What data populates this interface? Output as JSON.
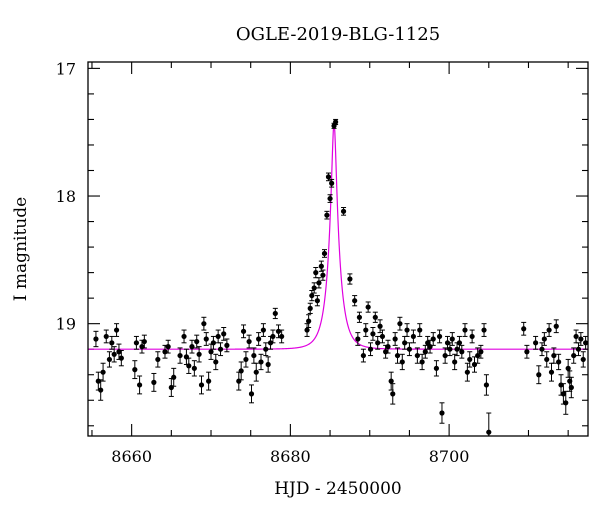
{
  "chart_data": {
    "type": "scatter",
    "title": "OGLE-2019-BLG-1125",
    "xlabel": "HJD - 2450000",
    "ylabel": "I magnitude",
    "xlim": [
      8654.5,
      8717.5
    ],
    "ylim": [
      19.88,
      16.95
    ],
    "y_inverted": true,
    "x_ticks": [
      8660,
      8680,
      8700
    ],
    "y_ticks": [
      17,
      18,
      19
    ],
    "grid": false,
    "colors": {
      "points": "#000000",
      "model": "#e000e0"
    },
    "model": {
      "name": "",
      "baseline": 19.2,
      "peak": 17.43,
      "t0": 8685.5,
      "tE": 1.35
    },
    "series": [
      {
        "points": [
          [
            8655.5,
            19.12,
            0.06
          ],
          [
            8655.8,
            19.45,
            0.07
          ],
          [
            8656.1,
            19.52,
            0.08
          ],
          [
            8656.4,
            19.38,
            0.07
          ],
          [
            8656.8,
            19.1,
            0.05
          ],
          [
            8657.2,
            19.28,
            0.06
          ],
          [
            8657.5,
            19.15,
            0.05
          ],
          [
            8657.8,
            19.24,
            0.06
          ],
          [
            8658.1,
            19.05,
            0.05
          ],
          [
            8658.4,
            19.22,
            0.06
          ],
          [
            8658.7,
            19.27,
            0.06
          ],
          [
            8660.4,
            19.36,
            0.07
          ],
          [
            8660.6,
            19.15,
            0.05
          ],
          [
            8661.0,
            19.48,
            0.07
          ],
          [
            8661.3,
            19.18,
            0.05
          ],
          [
            8661.6,
            19.14,
            0.05
          ],
          [
            8662.8,
            19.46,
            0.07
          ],
          [
            8663.3,
            19.28,
            0.06
          ],
          [
            8664.2,
            19.22,
            0.05
          ],
          [
            8664.6,
            19.18,
            0.05
          ],
          [
            8665.0,
            19.5,
            0.07
          ],
          [
            8665.3,
            19.42,
            0.07
          ],
          [
            8666.1,
            19.25,
            0.06
          ],
          [
            8666.6,
            19.1,
            0.05
          ],
          [
            8666.9,
            19.26,
            0.06
          ],
          [
            8667.2,
            19.33,
            0.06
          ],
          [
            8667.6,
            19.18,
            0.05
          ],
          [
            8667.9,
            19.35,
            0.06
          ],
          [
            8668.2,
            19.14,
            0.05
          ],
          [
            8668.5,
            19.24,
            0.06
          ],
          [
            8668.8,
            19.48,
            0.07
          ],
          [
            8669.1,
            19.0,
            0.05
          ],
          [
            8669.4,
            19.12,
            0.05
          ],
          [
            8669.7,
            19.45,
            0.07
          ],
          [
            8670.0,
            19.22,
            0.06
          ],
          [
            8670.3,
            19.15,
            0.05
          ],
          [
            8670.6,
            19.3,
            0.06
          ],
          [
            8670.9,
            19.1,
            0.05
          ],
          [
            8671.2,
            19.2,
            0.05
          ],
          [
            8671.6,
            19.08,
            0.05
          ],
          [
            8672.0,
            19.17,
            0.05
          ],
          [
            8673.5,
            19.45,
            0.07
          ],
          [
            8673.8,
            19.37,
            0.07
          ],
          [
            8674.1,
            19.06,
            0.05
          ],
          [
            8674.4,
            19.28,
            0.06
          ],
          [
            8674.8,
            19.14,
            0.05
          ],
          [
            8675.1,
            19.55,
            0.07
          ],
          [
            8675.4,
            19.25,
            0.06
          ],
          [
            8675.7,
            19.38,
            0.07
          ],
          [
            8676.0,
            19.12,
            0.05
          ],
          [
            8676.3,
            19.3,
            0.06
          ],
          [
            8676.6,
            19.05,
            0.05
          ],
          [
            8676.9,
            19.2,
            0.05
          ],
          [
            8677.2,
            19.32,
            0.06
          ],
          [
            8677.5,
            19.15,
            0.05
          ],
          [
            8677.8,
            19.1,
            0.05
          ],
          [
            8678.1,
            18.92,
            0.04
          ],
          [
            8678.5,
            19.06,
            0.05
          ],
          [
            8678.9,
            19.1,
            0.05
          ],
          [
            8682.1,
            19.05,
            0.05
          ],
          [
            8682.3,
            18.98,
            0.05
          ],
          [
            8682.5,
            18.88,
            0.04
          ],
          [
            8682.7,
            18.78,
            0.04
          ],
          [
            8683.0,
            18.72,
            0.04
          ],
          [
            8683.2,
            18.6,
            0.04
          ],
          [
            8683.4,
            18.82,
            0.04
          ],
          [
            8683.6,
            18.68,
            0.04
          ],
          [
            8683.9,
            18.55,
            0.04
          ],
          [
            8684.1,
            18.62,
            0.04
          ],
          [
            8684.3,
            18.45,
            0.03
          ],
          [
            8684.6,
            18.15,
            0.03
          ],
          [
            8684.8,
            17.85,
            0.03
          ],
          [
            8685.0,
            18.02,
            0.03
          ],
          [
            8685.2,
            17.9,
            0.03
          ],
          [
            8685.5,
            17.45,
            0.02
          ],
          [
            8685.7,
            17.42,
            0.02
          ],
          [
            8686.7,
            18.12,
            0.03
          ],
          [
            8687.5,
            18.65,
            0.04
          ],
          [
            8688.1,
            18.82,
            0.04
          ],
          [
            8688.5,
            19.12,
            0.05
          ],
          [
            8688.7,
            18.95,
            0.04
          ],
          [
            8689.2,
            19.25,
            0.05
          ],
          [
            8689.5,
            19.05,
            0.05
          ],
          [
            8689.8,
            18.87,
            0.04
          ],
          [
            8690.1,
            19.2,
            0.05
          ],
          [
            8690.4,
            19.08,
            0.05
          ],
          [
            8690.7,
            18.95,
            0.04
          ],
          [
            8691.0,
            19.15,
            0.05
          ],
          [
            8691.3,
            19.02,
            0.05
          ],
          [
            8691.6,
            19.1,
            0.05
          ],
          [
            8692.0,
            19.22,
            0.05
          ],
          [
            8692.3,
            19.18,
            0.05
          ],
          [
            8692.7,
            19.45,
            0.07
          ],
          [
            8692.9,
            19.55,
            0.08
          ],
          [
            8693.2,
            19.12,
            0.05
          ],
          [
            8693.5,
            19.25,
            0.06
          ],
          [
            8693.8,
            19.0,
            0.05
          ],
          [
            8694.1,
            19.3,
            0.06
          ],
          [
            8694.4,
            19.15,
            0.05
          ],
          [
            8694.7,
            19.05,
            0.05
          ],
          [
            8695.0,
            19.2,
            0.05
          ],
          [
            8695.5,
            19.1,
            0.05
          ],
          [
            8696.0,
            19.25,
            0.06
          ],
          [
            8696.3,
            19.05,
            0.05
          ],
          [
            8696.6,
            19.3,
            0.06
          ],
          [
            8697.0,
            19.22,
            0.05
          ],
          [
            8697.3,
            19.15,
            0.05
          ],
          [
            8697.6,
            19.18,
            0.05
          ],
          [
            8698.0,
            19.12,
            0.05
          ],
          [
            8698.4,
            19.35,
            0.06
          ],
          [
            8698.8,
            19.1,
            0.05
          ],
          [
            8699.1,
            19.7,
            0.08
          ],
          [
            8699.5,
            19.25,
            0.06
          ],
          [
            8699.8,
            19.15,
            0.05
          ],
          [
            8700.1,
            19.2,
            0.05
          ],
          [
            8700.4,
            19.12,
            0.05
          ],
          [
            8700.7,
            19.3,
            0.06
          ],
          [
            8701.0,
            19.2,
            0.05
          ],
          [
            8701.3,
            19.15,
            0.05
          ],
          [
            8701.6,
            19.22,
            0.05
          ],
          [
            8702.0,
            19.05,
            0.05
          ],
          [
            8702.3,
            19.38,
            0.07
          ],
          [
            8702.6,
            19.28,
            0.06
          ],
          [
            8702.9,
            19.1,
            0.05
          ],
          [
            8703.2,
            19.32,
            0.06
          ],
          [
            8703.6,
            19.25,
            0.06
          ],
          [
            8704.0,
            19.22,
            0.05
          ],
          [
            8704.4,
            19.05,
            0.05
          ],
          [
            8704.7,
            19.48,
            0.08
          ],
          [
            8705.0,
            19.85,
            0.15
          ],
          [
            8709.4,
            19.04,
            0.05
          ],
          [
            8709.8,
            19.22,
            0.05
          ],
          [
            8710.9,
            19.15,
            0.05
          ],
          [
            8711.3,
            19.4,
            0.07
          ],
          [
            8711.7,
            19.2,
            0.05
          ],
          [
            8712.0,
            19.12,
            0.05
          ],
          [
            8712.3,
            19.28,
            0.06
          ],
          [
            8712.6,
            19.05,
            0.05
          ],
          [
            8712.9,
            19.38,
            0.07
          ],
          [
            8713.2,
            19.25,
            0.06
          ],
          [
            8713.5,
            19.02,
            0.05
          ],
          [
            8713.8,
            19.3,
            0.06
          ],
          [
            8714.1,
            19.48,
            0.08
          ],
          [
            8714.4,
            19.55,
            0.08
          ],
          [
            8714.7,
            19.62,
            0.09
          ],
          [
            8715.0,
            19.35,
            0.07
          ],
          [
            8715.2,
            19.45,
            0.08
          ],
          [
            8715.4,
            19.5,
            0.08
          ],
          [
            8715.7,
            19.25,
            0.06
          ],
          [
            8716.0,
            19.1,
            0.05
          ],
          [
            8716.3,
            19.2,
            0.05
          ],
          [
            8716.6,
            19.12,
            0.05
          ],
          [
            8716.9,
            19.28,
            0.06
          ],
          [
            8717.2,
            19.15,
            0.05
          ]
        ]
      }
    ]
  }
}
